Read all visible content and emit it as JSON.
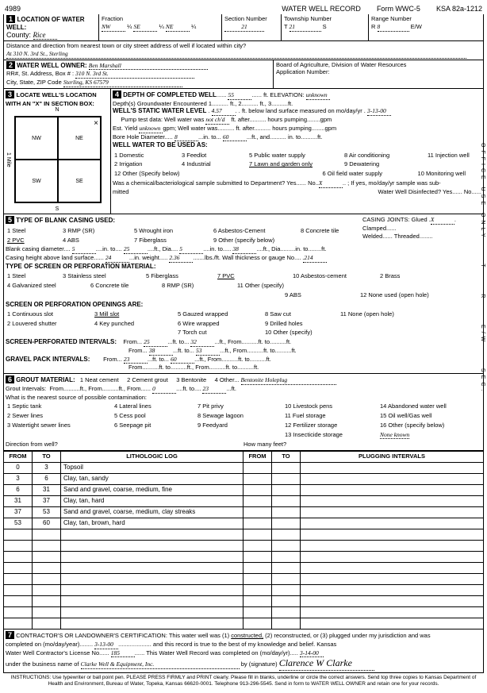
{
  "form_number": "4989",
  "form_title": "WATER WELL RECORD",
  "form_code": "Form WWC-5",
  "form_ksa": "KSA 82a-1212",
  "loc": {
    "county_lbl": "County:",
    "county": "Rice",
    "fraction_lbl": "Fraction",
    "f1": "NW",
    "f2": "SE",
    "f3": "NE",
    "section_lbl": "Section Number",
    "section": "21",
    "township_lbl": "Township Number",
    "township_t": "T",
    "township": "21",
    "township_s": "S",
    "range_lbl": "Range Number",
    "range_r": "R",
    "range": "8",
    "range_ew": "E/W",
    "dist_lbl": "Distance and direction from nearest town or city street address of well if located within city?",
    "dist": "At 310 N. 3rd St., Sterling"
  },
  "owner": {
    "lbl": "WATER WELL OWNER:",
    "name": "Ben Marshall",
    "addr_lbl": "RR#, St. Address, Box # :",
    "addr": "310 N. 3rd St.",
    "city_lbl": "City, State, ZIP Code",
    "city": "Sterling, KS  67579",
    "board": "Board of Agriculture, Division of Water Resources",
    "appno": "Application Number:"
  },
  "sec3": {
    "lbl": "LOCATE WELL'S LOCATION WITH AN \"X\" IN SECTION BOX:",
    "nw": "NW",
    "ne": "NE",
    "sw": "SW",
    "se": "SE",
    "mile": "1 Mile",
    "n": "N",
    "s": "S",
    "e": "E",
    "w": "W"
  },
  "sec4": {
    "lbl": "DEPTH OF COMPLETED WELL",
    "depth": "55",
    "elev_lbl": "ft. ELEVATION:",
    "elev": "unknown",
    "gw_lbl": "Depth(s) Groundwater Encountered",
    "gw1": "1",
    "gw2": "ft., 2",
    "gw3": "ft., 3",
    "gw_ft": "ft.",
    "static_lbl": "WELL'S STATIC WATER LEVEL",
    "static": "4.57",
    "static_txt": "ft. below land surface measured on mo/day/yr",
    "static_date": "3-13-00",
    "pump_lbl": "Pump test data:  Well water was",
    "pump": "not ch'd",
    "pump_aft": "ft. after",
    "pump_hrs": "hours pumping",
    "pump_gpm": "gpm",
    "yield_lbl": "Est. Yield",
    "yield": "unknown",
    "yield_txt": "gpm; Well water was",
    "yield_aft": "ft. after",
    "yield_hrs": "hours pumping",
    "yield_gpm": "gpm",
    "bore_lbl": "Bore Hole Diameter",
    "bore": "8",
    "bore_to": "in. to",
    "bore_ft": "60",
    "bore_and": "ft., and",
    "bore_in": "in. to",
    "bore_ft2": "ft.",
    "use_lbl": "WELL WATER TO BE USED AS:",
    "uses": {
      "1": "1 Domestic",
      "2": "2 Irrigation",
      "3": "3 Feedlot",
      "4": "4 Industrial",
      "5": "5 Public water supply",
      "6": "6 Oil field water supply",
      "7": "7 Lawn and garden only",
      "8": "8 Air conditioning",
      "9": "9 Dewatering",
      "10": "10 Monitoring well",
      "11": "11 Injection well",
      "12": "12 Other (Specify below)"
    },
    "chem_lbl": "Was a chemical/bacteriological sample submitted to Department? Yes",
    "chem_no": "No",
    "chem_x": "X",
    "chem_txt": "; If yes, mo/day/yr sample was sub-",
    "chem2": "mitted",
    "disinfect": "Water Well Disinfected?  Yes",
    "disinfect_no": "No"
  },
  "sec5": {
    "lbl": "TYPE OF BLANK CASING USED:",
    "c": {
      "1": "1 Steel",
      "2": "2 PVC",
      "3": "3 RMP (SR)",
      "4": "4 ABS",
      "5": "5 Wrought iron",
      "6": "6 Asbestos-Cement",
      "7": "7 Fiberglass",
      "8": "8 Concrete tile",
      "9": "9 Other (specify below)"
    },
    "joints_lbl": "CASING JOINTS: Glued",
    "joints_x": "X",
    "joints2": "Clamped",
    "joints3": "Welded",
    "joints4": "Threaded",
    "dia_lbl": "Blank casing diameter",
    "dia": "5",
    "dia_to": "in. to",
    "dia_ft": "25",
    "dia_ft_lbl": "ft., Dia.",
    "dia2": "5",
    "dia_to2": "in. to",
    "dia_ft2": "38",
    "dia_rest": "ft., Dia.",
    "dia_in3": "in. to",
    "dia_ft3": "ft.",
    "ht_lbl": "Casing height above land surface",
    "ht": "24",
    "ht_in": "in. weight",
    "wt": "2.36",
    "wt_lbs": "lbs./ft. Wall thickness or gauge No.",
    "gauge": ".214",
    "screen_lbl": "TYPE OF SCREEN OR PERFORATION MATERIAL:",
    "s": {
      "1": "1 Steel",
      "2": "2 Brass",
      "3": "3 Stainless steel",
      "4": "4 Galvanized steel",
      "5": "5 Fiberglass",
      "6": "6 Concrete tile",
      "7": "7 PVC",
      "8": "8 RMP (SR)",
      "9": "9 ABS",
      "10": "10 Asbestos-cement",
      "11": "11 Other (specify)",
      "12": "12 None used (open hole)"
    },
    "open_lbl": "SCREEN OR PERFORATION OPENINGS ARE:",
    "o": {
      "1": "1 Continuous slot",
      "2": "2 Louvered shutter",
      "3": "3 Mill slot",
      "4": "4 Key punched",
      "5": "5 Gauzed wrapped",
      "6": "6 Wire wrapped",
      "7": "7 Torch cut",
      "8": "8 Saw cut",
      "9": "9 Drilled holes",
      "10": "10 Other (specify)",
      "11": "11 None (open hole)"
    },
    "perf_lbl": "SCREEN-PERFORATED INTERVALS:",
    "p1f": "25",
    "p1t": "32",
    "p2f": "38",
    "p2t": "53",
    "p3f": "23",
    "p3t": "60",
    "grav_lbl": "GRAVEL PACK INTERVALS:",
    "from": "From",
    "to": "ft. to",
    "ft_from": "ft., From",
    "ft_to": "ft. to",
    "ft": "ft."
  },
  "sec6": {
    "lbl": "GROUT MATERIAL:",
    "g1": "1 Neat cement",
    "g2": "2 Cement grout",
    "g3": "3 Bentonite",
    "g4": "4 Other",
    "g4v": "Bentonite Holeplug",
    "gi_lbl": "Grout Intervals:",
    "gi_from": "From",
    "gi_ft_to": "ft., From",
    "gi0": "0",
    "gi_to": "ft. to",
    "gi23": "23",
    "gift": "ft.",
    "src_lbl": "What is the nearest source of possible contamination:",
    "src": {
      "1": "1 Septic tank",
      "2": "2 Sewer lines",
      "3": "3 Watertight sewer lines",
      "4": "4 Lateral lines",
      "5": "5 Cess pool",
      "6": "6 Seepage pit",
      "7": "7 Pit privy",
      "8": "8 Sewage lagoon",
      "9": "9 Feedyard",
      "10": "10 Livestock pens",
      "11": "11 Fuel storage",
      "12": "12 Fertilizer storage",
      "13": "13 Insecticide storage",
      "14": "14 Abandoned water well",
      "15": "15 Oil well/Gas well",
      "16": "16 Other (specify below)"
    },
    "none": "None known",
    "dir_lbl": "Direction from well?",
    "many": "How many feet?"
  },
  "log": {
    "h": {
      "from": "FROM",
      "to": "TO",
      "litho": "LITHOLOGIC LOG",
      "from2": "FROM",
      "to2": "TO",
      "plug": "PLUGGING INTERVALS"
    },
    "rows": [
      {
        "f": "0",
        "t": "3",
        "d": "Topsoil"
      },
      {
        "f": "3",
        "t": "6",
        "d": "Clay, tan, sandy"
      },
      {
        "f": "6",
        "t": "31",
        "d": "Sand and gravel, coarse, medium, fine"
      },
      {
        "f": "31",
        "t": "37",
        "d": "Clay, tan, hard"
      },
      {
        "f": "37",
        "t": "53",
        "d": "Sand and gravel, coarse, medium, clay streaks"
      },
      {
        "f": "53",
        "t": "60",
        "d": "Clay, tan, brown, hard"
      }
    ]
  },
  "sec7": {
    "lbl": "CONTRACTOR'S OR LANDOWNER'S CERTIFICATION: This water well was (1)",
    "constructed": "constructed,",
    "txt2": "(2) reconstructed, or (3) plugged under my jurisdiction and was",
    "comp_lbl": "completed on (mo/day/year)",
    "comp": "3-13-00",
    "true": "and this record is true to the best of my knowledge and belief. Kansas",
    "lic_lbl": "Water Well Contractor's License No.",
    "lic": "185",
    "rec_lbl": "This Water Well Record was completed on (mo/day/yr)",
    "rec": "3-14-00",
    "bus_lbl": "under the business name of",
    "bus": "Clarke Well & Equipment, Inc.",
    "sig_lbl": "by (signature)",
    "inst": "INSTRUCTIONS: Use typewriter or ball point pen. PLEASE PRESS FIRMLY and PRINT clearly. Please fill in blanks, underline or circle the correct answers. Send top three copies to Kansas Department of Health and Environment, Bureau of Water, Topeka, Kansas 66620-0001. Telephone 913-296-5545. Send in form to WATER WELL OWNER and retain one for your records."
  },
  "side": {
    "t": "T",
    "r": "R",
    "sec": "SEC.",
    "ew": "E/W",
    "office": "OFFICE USE ONLY"
  }
}
